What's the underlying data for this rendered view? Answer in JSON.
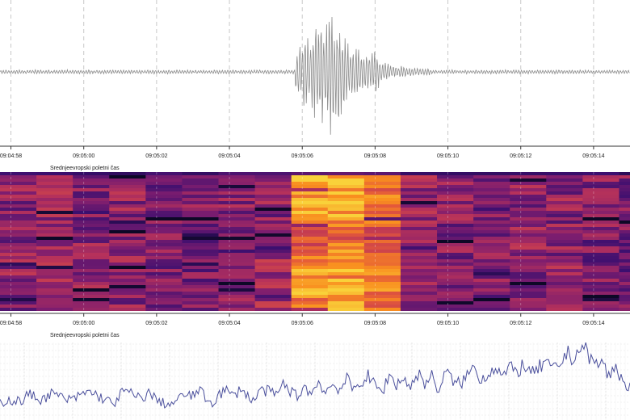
{
  "axis": {
    "tick_labels": [
      "09:04:58",
      "09:05:00",
      "09:05:02",
      "09:05:04",
      "09:05:06",
      "09:05:08",
      "09:05:10",
      "09:05:12",
      "09:05:14"
    ],
    "timezone_label": "Srednjeevropski poletni čas"
  },
  "colors": {
    "waveform": "#8a8a8a",
    "spectrum_line": "#4a4f9c",
    "grid_dashed": "#c8c8c8",
    "axis": "#333333"
  },
  "chart_data": [
    {
      "type": "line",
      "name": "seismogram",
      "x_range": [
        "09:04:57.7",
        "09:05:15.0"
      ],
      "grid": true,
      "background_amplitude": 0.08,
      "event": {
        "onset": "09:05:05.8",
        "peak": "09:05:06.8",
        "peak_amplitude": 1.0,
        "coda_end": "09:05:09.5"
      }
    },
    {
      "type": "heatmap",
      "name": "spectrogram",
      "x_range": [
        "09:04:57.7",
        "09:05:15.0"
      ],
      "colormap": [
        "#0d0826",
        "#3b0f6f",
        "#7c1d6f",
        "#b8325a",
        "#e3573b",
        "#f98e1f",
        "#f9d13a"
      ],
      "column_starts": [
        "09:04:57.7",
        "09:04:58.7",
        "09:04:59.7",
        "09:05:00.7",
        "09:05:01.7",
        "09:05:02.7",
        "09:05:03.7",
        "09:05:04.7",
        "09:05:05.7",
        "09:05:06.7",
        "09:05:07.7",
        "09:05:08.7",
        "09:05:09.7",
        "09:05:10.7",
        "09:05:11.7",
        "09:05:12.7",
        "09:05:13.7",
        "09:05:14.7"
      ],
      "column_energy": [
        0.5,
        0.52,
        0.48,
        0.5,
        0.47,
        0.45,
        0.5,
        0.55,
        0.9,
        0.95,
        0.8,
        0.52,
        0.48,
        0.45,
        0.5,
        0.5,
        0.46,
        0.45
      ]
    },
    {
      "type": "line",
      "name": "spectrum",
      "grid": true,
      "values": [
        0.22,
        0.26,
        0.25,
        0.24,
        0.33,
        0.3,
        0.26,
        0.34,
        0.32,
        0.28,
        0.25,
        0.3,
        0.35,
        0.36,
        0.3,
        0.26,
        0.2,
        0.33,
        0.38,
        0.3,
        0.28,
        0.35,
        0.27,
        0.22,
        0.2,
        0.24,
        0.34,
        0.29,
        0.4,
        0.28,
        0.22,
        0.34,
        0.38,
        0.3,
        0.42,
        0.3,
        0.26,
        0.4,
        0.36,
        0.32,
        0.46,
        0.38,
        0.3,
        0.44,
        0.33,
        0.5,
        0.36,
        0.46,
        0.4,
        0.52,
        0.38,
        0.5,
        0.56,
        0.44,
        0.36,
        0.58,
        0.46,
        0.54,
        0.42,
        0.6,
        0.48,
        0.56,
        0.38,
        0.62,
        0.5,
        0.46,
        0.58,
        0.68,
        0.52,
        0.6,
        0.7,
        0.56,
        0.66,
        0.62,
        0.72,
        0.58,
        0.66,
        0.74,
        0.64,
        0.7,
        0.86,
        0.8,
        0.94,
        0.88,
        0.7,
        0.76,
        0.56,
        0.68,
        0.5,
        0.42
      ]
    }
  ]
}
